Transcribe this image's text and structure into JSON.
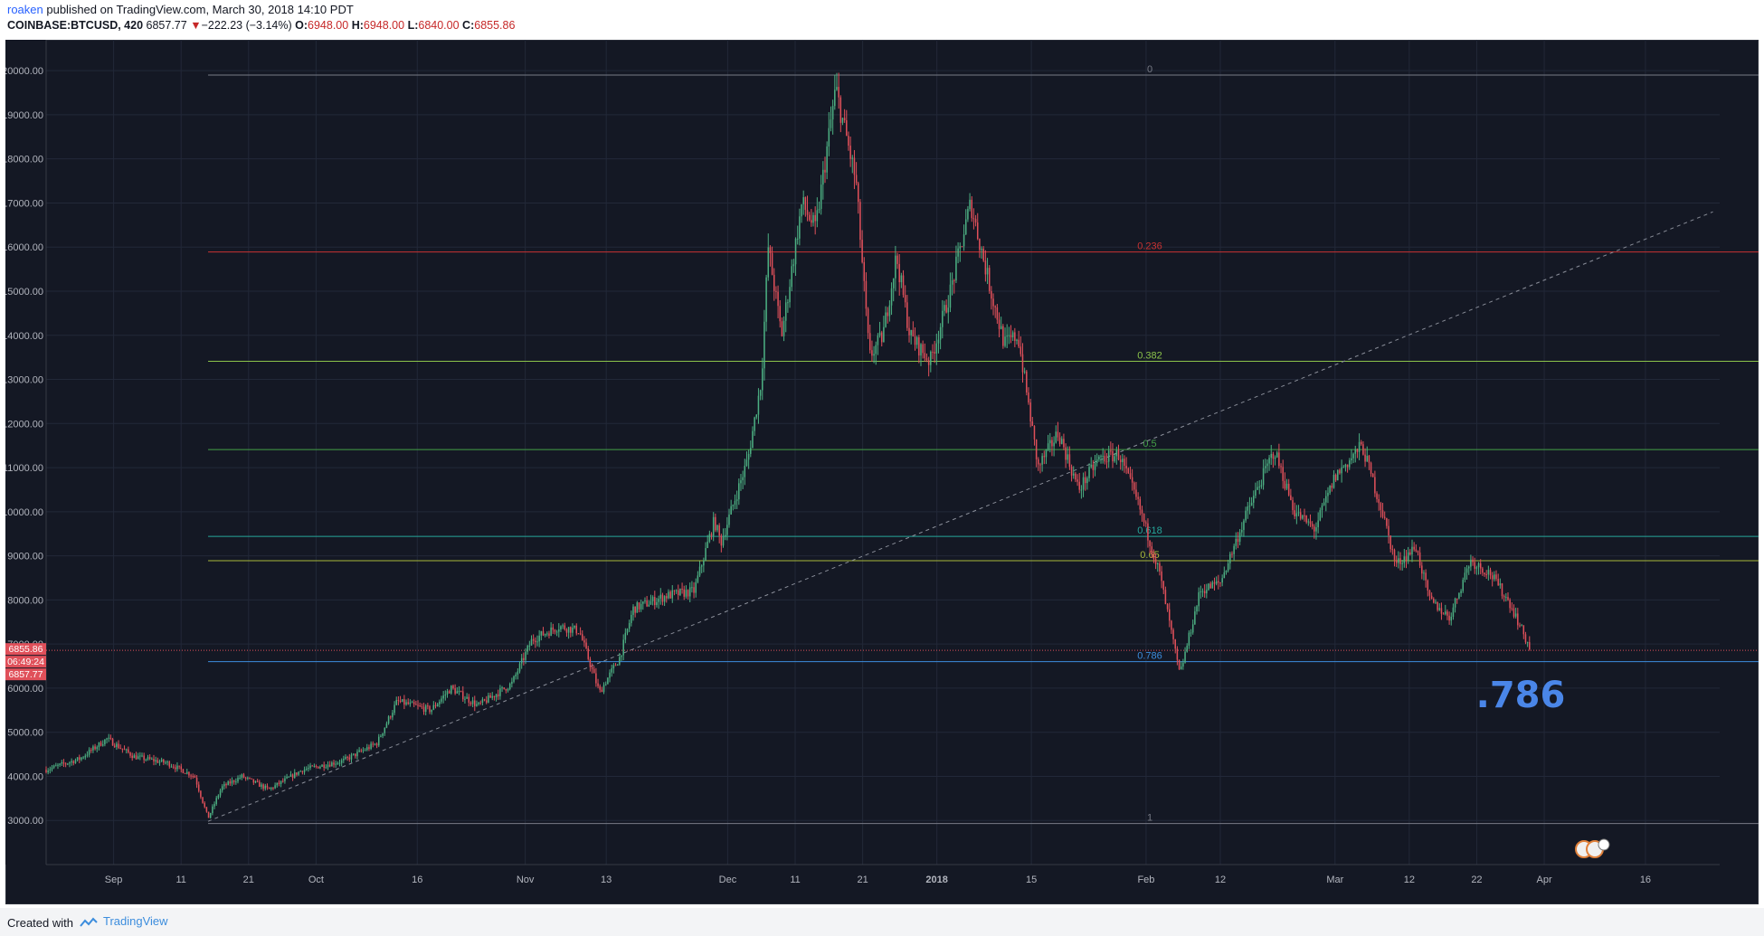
{
  "header": {
    "author": "roaken",
    "published": " published on TradingView.com, March 30, 2018 14:10 PDT",
    "symbol": "COINBASE:BTCUSD, 420",
    "last": "6857.77",
    "change": "−222.23 (−3.14%)",
    "o_label": "O:",
    "o_value": "6948.00",
    "h_label": "H:",
    "h_value": "6948.00",
    "l_label": "L:",
    "l_value": "6840.00",
    "c_label": "C:",
    "c_value": "6855.86"
  },
  "footer": {
    "created": "Created with",
    "brand": "TradingView"
  },
  "annotation": ".786",
  "price_tags": [
    "6855.86",
    "06:49:24",
    "6857.77"
  ],
  "colors": {
    "background": "#141824",
    "up": "#4caf82",
    "down": "#e0505a",
    "grid": "#222838",
    "annotation": "#4a86e8"
  },
  "chart_data": {
    "type": "candlestick",
    "symbol": "COINBASE:BTCUSD",
    "interval": "420",
    "ylim": [
      2000,
      20700
    ],
    "y_ticks": [
      "3000.00",
      "4000.00",
      "5000.00",
      "6000.00",
      "7000.00",
      "8000.00",
      "9000.00",
      "10000.00",
      "11000.00",
      "12000.00",
      "13000.00",
      "14000.00",
      "15000.00",
      "16000.00",
      "17000.00",
      "18000.00",
      "19000.00",
      "20000.00"
    ],
    "x_ticks": [
      {
        "label": "Sep",
        "date": "2017-09-01"
      },
      {
        "label": "11",
        "date": "2017-09-11"
      },
      {
        "label": "21",
        "date": "2017-09-21"
      },
      {
        "label": "Oct",
        "date": "2017-10-01"
      },
      {
        "label": "16",
        "date": "2017-10-16"
      },
      {
        "label": "Nov",
        "date": "2017-11-01"
      },
      {
        "label": "13",
        "date": "2017-11-13"
      },
      {
        "label": "Dec",
        "date": "2017-12-01"
      },
      {
        "label": "11",
        "date": "2017-12-11"
      },
      {
        "label": "21",
        "date": "2017-12-21"
      },
      {
        "label": "2018",
        "date": "2018-01-01"
      },
      {
        "label": "15",
        "date": "2018-01-15"
      },
      {
        "label": "Feb",
        "date": "2018-02-01"
      },
      {
        "label": "12",
        "date": "2018-02-12"
      },
      {
        "label": "Mar",
        "date": "2018-03-01"
      },
      {
        "label": "12",
        "date": "2018-03-12"
      },
      {
        "label": "22",
        "date": "2018-03-22"
      },
      {
        "label": "Apr",
        "date": "2018-04-01"
      },
      {
        "label": "16",
        "date": "2018-04-16"
      }
    ],
    "x_range": [
      "2017-08-22",
      "2018-04-27"
    ],
    "fib_levels": [
      {
        "label": "0",
        "value": 19900,
        "color": "#787b86"
      },
      {
        "label": "0.236",
        "value": 15890,
        "color": "#c83232"
      },
      {
        "label": "0.382",
        "value": 13410,
        "color": "#8bc34a"
      },
      {
        "label": "0.5",
        "value": 11410,
        "color": "#43a047"
      },
      {
        "label": "0.618",
        "value": 9440,
        "color": "#26a69a"
      },
      {
        "label": "0.65",
        "value": 8890,
        "color": "#a8b83a"
      },
      {
        "label": "0.786",
        "value": 6600,
        "color": "#3c8ddd"
      },
      {
        "label": "1",
        "value": 2930,
        "color": "#787b86"
      }
    ],
    "fib_start_date": "2017-09-15",
    "trendline": {
      "from": {
        "date": "2017-09-15",
        "value": 2980
      },
      "to": {
        "date": "2018-04-26",
        "value": 16800
      }
    },
    "current_price": 6855.86,
    "key_points": [
      {
        "date": "2017-08-22",
        "value": 4150
      },
      {
        "date": "2017-08-27",
        "value": 4400
      },
      {
        "date": "2017-08-31",
        "value": 4850
      },
      {
        "date": "2017-09-04",
        "value": 4450
      },
      {
        "date": "2017-09-09",
        "value": 4300
      },
      {
        "date": "2017-09-13",
        "value": 4000
      },
      {
        "date": "2017-09-15",
        "value": 3050
      },
      {
        "date": "2017-09-17",
        "value": 3750
      },
      {
        "date": "2017-09-20",
        "value": 4000
      },
      {
        "date": "2017-09-24",
        "value": 3700
      },
      {
        "date": "2017-09-29",
        "value": 4150
      },
      {
        "date": "2017-10-05",
        "value": 4350
      },
      {
        "date": "2017-10-10",
        "value": 4750
      },
      {
        "date": "2017-10-13",
        "value": 5700
      },
      {
        "date": "2017-10-18",
        "value": 5500
      },
      {
        "date": "2017-10-21",
        "value": 6000
      },
      {
        "date": "2017-10-25",
        "value": 5600
      },
      {
        "date": "2017-10-30",
        "value": 6100
      },
      {
        "date": "2017-11-02",
        "value": 7100
      },
      {
        "date": "2017-11-06",
        "value": 7400
      },
      {
        "date": "2017-11-09",
        "value": 7300
      },
      {
        "date": "2017-11-12",
        "value": 5900
      },
      {
        "date": "2017-11-15",
        "value": 6700
      },
      {
        "date": "2017-11-17",
        "value": 7800
      },
      {
        "date": "2017-11-22",
        "value": 8100
      },
      {
        "date": "2017-11-26",
        "value": 8200
      },
      {
        "date": "2017-11-29",
        "value": 9800
      },
      {
        "date": "2017-11-30",
        "value": 9300
      },
      {
        "date": "2017-12-04",
        "value": 11200
      },
      {
        "date": "2017-12-06",
        "value": 13000
      },
      {
        "date": "2017-12-07",
        "value": 16000
      },
      {
        "date": "2017-12-09",
        "value": 14000
      },
      {
        "date": "2017-12-12",
        "value": 17000
      },
      {
        "date": "2017-12-14",
        "value": 16400
      },
      {
        "date": "2017-12-17",
        "value": 19600
      },
      {
        "date": "2017-12-20",
        "value": 17500
      },
      {
        "date": "2017-12-22",
        "value": 13500
      },
      {
        "date": "2017-12-24",
        "value": 14000
      },
      {
        "date": "2017-12-26",
        "value": 15800
      },
      {
        "date": "2017-12-28",
        "value": 14000
      },
      {
        "date": "2017-12-31",
        "value": 13400
      },
      {
        "date": "2018-01-03",
        "value": 15000
      },
      {
        "date": "2018-01-06",
        "value": 17000
      },
      {
        "date": "2018-01-09",
        "value": 15000
      },
      {
        "date": "2018-01-11",
        "value": 13800
      },
      {
        "date": "2018-01-13",
        "value": 14000
      },
      {
        "date": "2018-01-16",
        "value": 11000
      },
      {
        "date": "2018-01-19",
        "value": 11800
      },
      {
        "date": "2018-01-22",
        "value": 10500
      },
      {
        "date": "2018-01-25",
        "value": 11200
      },
      {
        "date": "2018-01-28",
        "value": 11300
      },
      {
        "date": "2018-01-31",
        "value": 10100
      },
      {
        "date": "2018-02-03",
        "value": 8600
      },
      {
        "date": "2018-02-06",
        "value": 6300
      },
      {
        "date": "2018-02-09",
        "value": 8200
      },
      {
        "date": "2018-02-12",
        "value": 8400
      },
      {
        "date": "2018-02-16",
        "value": 10000
      },
      {
        "date": "2018-02-20",
        "value": 11400
      },
      {
        "date": "2018-02-23",
        "value": 10000
      },
      {
        "date": "2018-02-26",
        "value": 9600
      },
      {
        "date": "2018-03-01",
        "value": 10800
      },
      {
        "date": "2018-03-05",
        "value": 11500
      },
      {
        "date": "2018-03-08",
        "value": 10000
      },
      {
        "date": "2018-03-10",
        "value": 8800
      },
      {
        "date": "2018-03-13",
        "value": 9200
      },
      {
        "date": "2018-03-15",
        "value": 8000
      },
      {
        "date": "2018-03-18",
        "value": 7600
      },
      {
        "date": "2018-03-21",
        "value": 8900
      },
      {
        "date": "2018-03-24",
        "value": 8600
      },
      {
        "date": "2018-03-27",
        "value": 7900
      },
      {
        "date": "2018-03-30",
        "value": 6856
      }
    ]
  }
}
